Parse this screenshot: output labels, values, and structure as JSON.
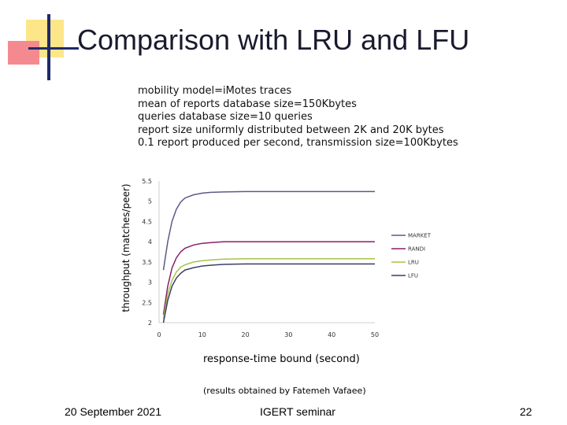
{
  "slide": {
    "title": "Comparison with LRU and LFU",
    "params": [
      "mobility model=iMotes traces",
      "mean of reports database size=150Kbytes",
      "queries database size=10 queries",
      "report size uniformly distributed between 2K and 20K bytes",
      "0.1 report produced per second, transmission size=100Kbytes"
    ],
    "credit": "(results obtained by Fatemeh Vafaee)",
    "footer": {
      "date": "20 September 2021",
      "event": "IGERT seminar",
      "page": "22"
    }
  },
  "chart_data": {
    "type": "line",
    "xlabel": "response-time bound (second)",
    "ylabel": "throughput (matches/peer)",
    "xlim": [
      0,
      50
    ],
    "ylim": [
      2,
      5.5
    ],
    "x_ticks": [
      "0",
      "10",
      "20",
      "30",
      "40",
      "50"
    ],
    "y_ticks": [
      "2",
      "2.5",
      "3",
      "3.5",
      "4",
      "4.5",
      "5",
      "5.5"
    ],
    "legend_position": "right",
    "x": [
      1,
      2,
      3,
      4,
      5,
      6,
      8,
      10,
      12,
      15,
      20,
      25,
      30,
      35,
      40,
      45,
      50
    ],
    "series": [
      {
        "name": "MARKET",
        "color": "#5a5a8a",
        "values": [
          3.3,
          4.0,
          4.5,
          4.8,
          4.98,
          5.08,
          5.16,
          5.2,
          5.22,
          5.23,
          5.24,
          5.24,
          5.24,
          5.24,
          5.24,
          5.24,
          5.24
        ]
      },
      {
        "name": "RANDI",
        "color": "#8a1f6b",
        "values": [
          2.2,
          2.9,
          3.35,
          3.6,
          3.75,
          3.84,
          3.92,
          3.96,
          3.98,
          4.0,
          4.0,
          4.0,
          4.0,
          4.0,
          4.0,
          4.0,
          4.0
        ]
      },
      {
        "name": "LRU",
        "color": "#a6c44a",
        "values": [
          2.1,
          2.7,
          3.05,
          3.25,
          3.37,
          3.43,
          3.5,
          3.53,
          3.55,
          3.57,
          3.58,
          3.58,
          3.58,
          3.58,
          3.58,
          3.58,
          3.58
        ]
      },
      {
        "name": "LFU",
        "color": "#3a3f66",
        "values": [
          2.0,
          2.55,
          2.9,
          3.1,
          3.22,
          3.3,
          3.36,
          3.4,
          3.42,
          3.44,
          3.45,
          3.45,
          3.45,
          3.45,
          3.45,
          3.45,
          3.45
        ]
      }
    ]
  }
}
